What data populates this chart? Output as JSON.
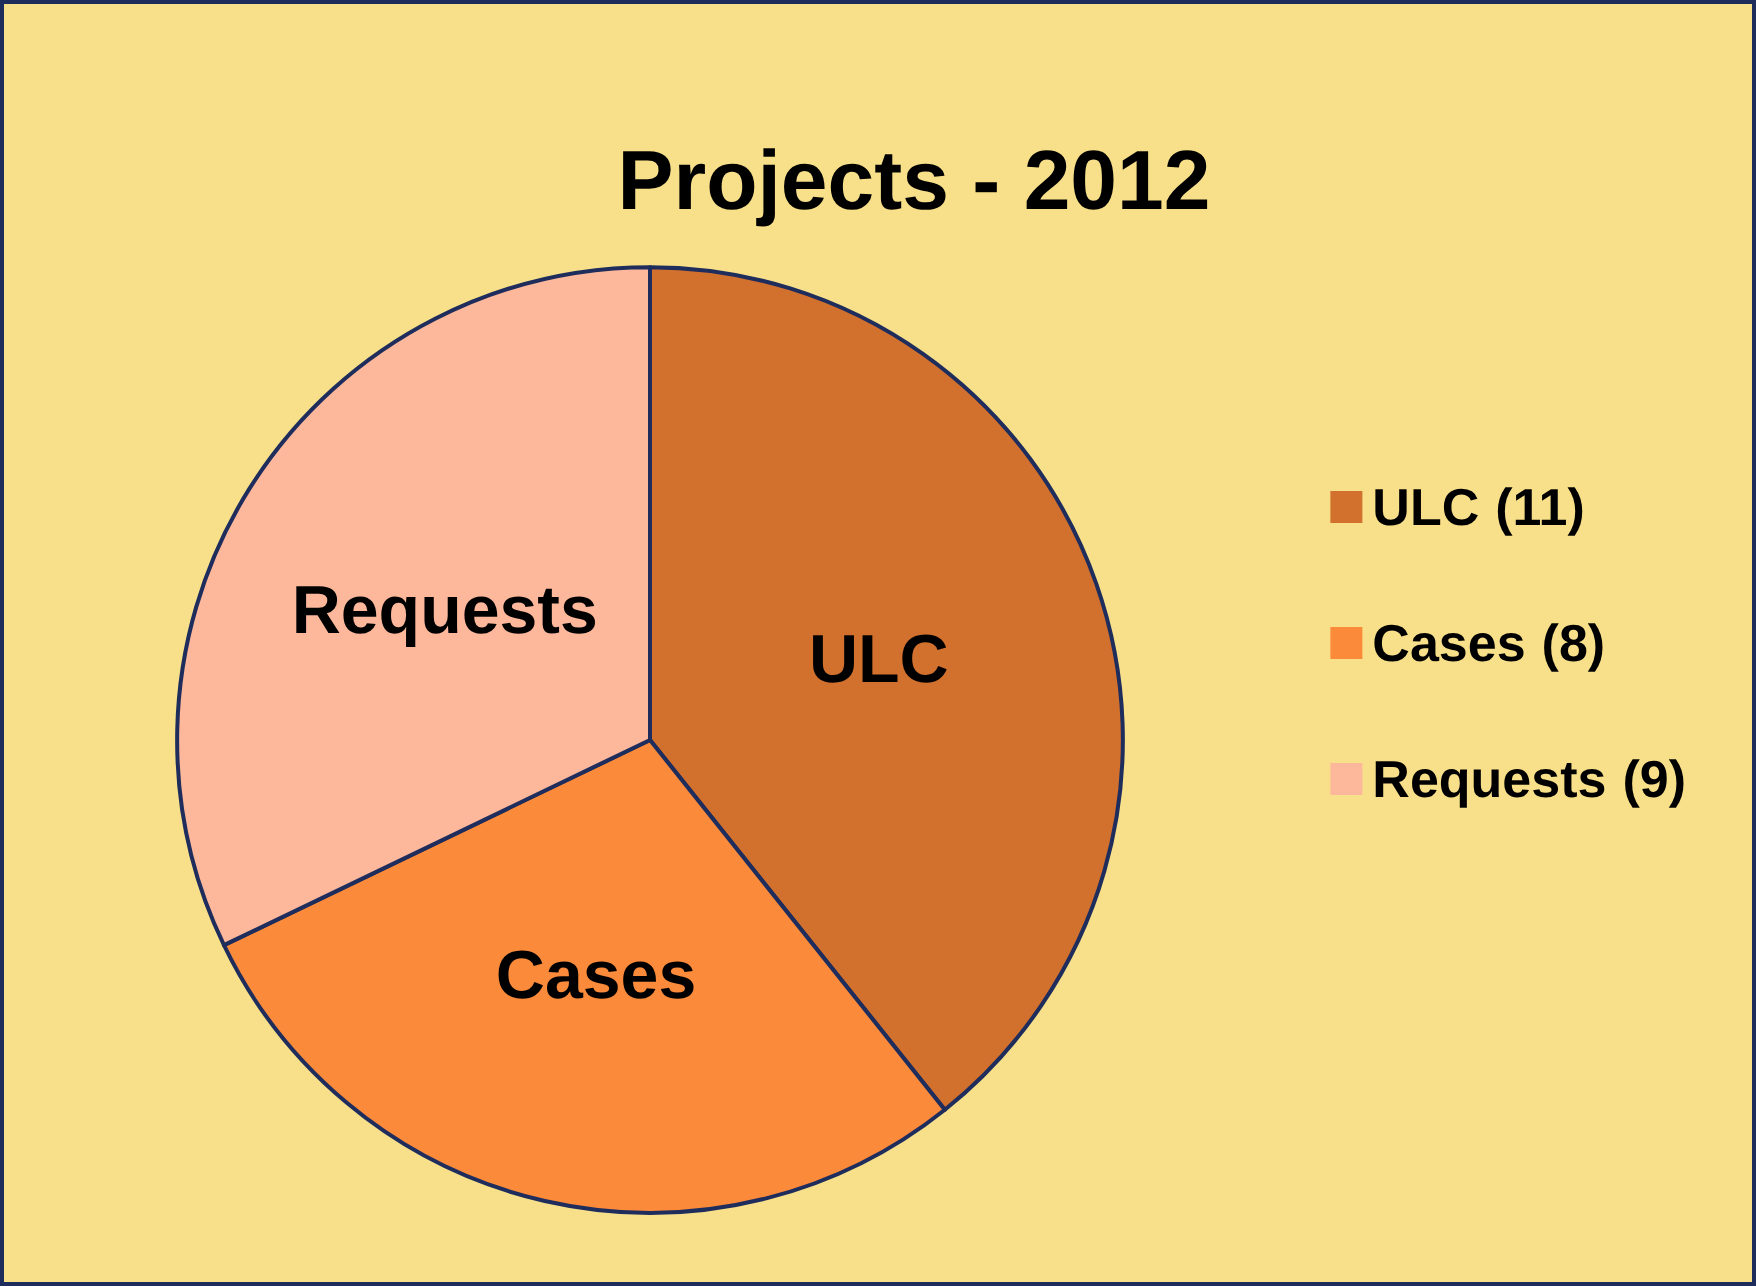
{
  "chart_data": {
    "type": "pie",
    "title": "Projects - 2012",
    "categories": [
      "ULC",
      "Cases",
      "Requests"
    ],
    "values": [
      11,
      8,
      9
    ],
    "value_labels": [
      "(11)",
      "(8)",
      "(9)"
    ],
    "colors": [
      "#d2702d",
      "#fb8a3a",
      "#fdb89c"
    ],
    "legend": "right"
  }
}
